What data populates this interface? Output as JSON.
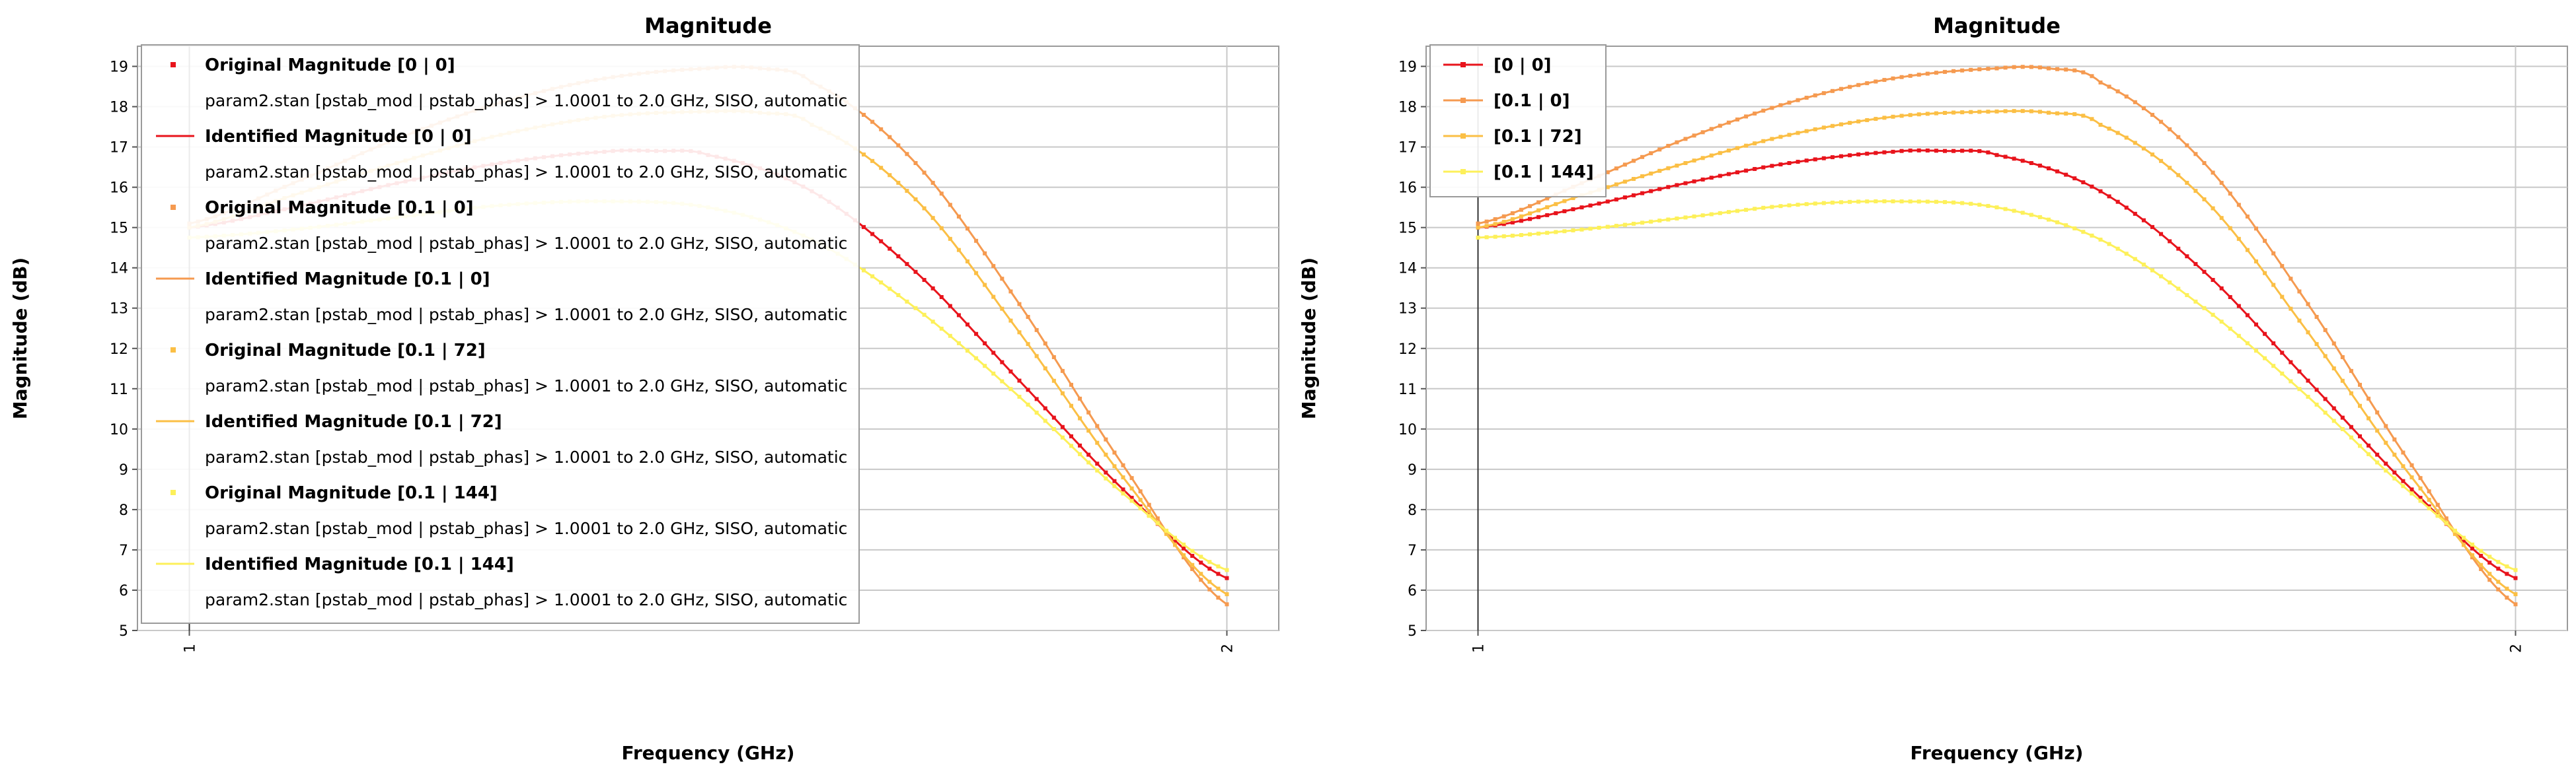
{
  "chart_data": [
    {
      "type": "line",
      "title": "Magnitude",
      "xlabel": "Frequency (GHz)",
      "ylabel": "Magnitude (dB)",
      "xlim": [
        0.95,
        2.05
      ],
      "ylim": [
        5,
        19.5
      ],
      "x_ticks": [
        "1",
        "2"
      ],
      "y_ticks": [
        "5",
        "6",
        "7",
        "8",
        "9",
        "10",
        "11",
        "12",
        "13",
        "14",
        "15",
        "16",
        "17",
        "18",
        "19"
      ],
      "grid": true,
      "legend": {
        "placement": "top-left",
        "entries": [
          {
            "label": "Original Magnitude [0 | 0]",
            "detail": "param2.stan [pstab_mod | pstab_phas] > 1.0001 to 2.0 GHz, SISO, automatic",
            "marker": "dot",
            "color": "#e8141c"
          },
          {
            "label": "Identified Magnitude [0 | 0]",
            "detail": "param2.stan [pstab_mod | pstab_phas] > 1.0001 to 2.0 GHz, SISO, automatic",
            "marker": "line",
            "color": "#e8141c"
          },
          {
            "label": "Original Magnitude [0.1 | 0]",
            "detail": "param2.stan [pstab_mod | pstab_phas] > 1.0001 to 2.0 GHz, SISO, automatic",
            "marker": "dot",
            "color": "#f59a50"
          },
          {
            "label": "Identified Magnitude [0.1 | 0]",
            "detail": "param2.stan [pstab_mod | pstab_phas] > 1.0001 to 2.0 GHz, SISO, automatic",
            "marker": "line",
            "color": "#f59a50"
          },
          {
            "label": "Original Magnitude [0.1 | 72]",
            "detail": "param2.stan [pstab_mod | pstab_phas] > 1.0001 to 2.0 GHz, SISO, automatic",
            "marker": "dot",
            "color": "#fbbf45"
          },
          {
            "label": "Identified Magnitude [0.1 | 72]",
            "detail": "param2.stan [pstab_mod | pstab_phas] > 1.0001 to 2.0 GHz, SISO, automatic",
            "marker": "line",
            "color": "#fbbf45"
          },
          {
            "label": "Original Magnitude [0.1 | 144]",
            "detail": "param2.stan [pstab_mod | pstab_phas] > 1.0001 to 2.0 GHz, SISO, automatic",
            "marker": "dot",
            "color": "#fdf05a"
          },
          {
            "label": "Identified Magnitude [0.1 | 144]",
            "detail": "param2.stan [pstab_mod | pstab_phas] > 1.0001 to 2.0 GHz, SISO, automatic",
            "marker": "line",
            "color": "#fdf05a"
          }
        ]
      },
      "series": [
        {
          "name": "[0 | 0]",
          "color": "#e8141c",
          "x": [
            1.0,
            1.1,
            1.2,
            1.3,
            1.4,
            1.45,
            1.5,
            1.6,
            1.7,
            1.8,
            1.9,
            2.0
          ],
          "y": [
            15.0,
            15.5,
            16.1,
            16.6,
            16.88,
            16.9,
            16.8,
            15.9,
            13.9,
            11.2,
            8.5,
            6.3
          ]
        },
        {
          "name": "[0.1 | 0]",
          "color": "#f59a50",
          "x": [
            1.0,
            1.1,
            1.2,
            1.3,
            1.4,
            1.5,
            1.55,
            1.6,
            1.7,
            1.8,
            1.9,
            2.0
          ],
          "y": [
            15.1,
            16.1,
            17.2,
            18.1,
            18.7,
            18.95,
            18.95,
            18.6,
            16.6,
            13.1,
            9.1,
            5.65
          ]
        },
        {
          "name": "[0.1 | 72]",
          "color": "#fbbf45",
          "x": [
            1.0,
            1.1,
            1.2,
            1.3,
            1.4,
            1.5,
            1.55,
            1.6,
            1.7,
            1.8,
            1.9,
            2.0
          ],
          "y": [
            15.0,
            15.8,
            16.6,
            17.3,
            17.75,
            17.88,
            17.85,
            17.55,
            15.7,
            12.4,
            8.8,
            5.9
          ]
        },
        {
          "name": "[0.1 | 144]",
          "color": "#fdf05a",
          "x": [
            1.0,
            1.1,
            1.2,
            1.3,
            1.4,
            1.5,
            1.6,
            1.7,
            1.8,
            1.9,
            2.0
          ],
          "y": [
            14.75,
            14.95,
            15.25,
            15.55,
            15.65,
            15.5,
            14.7,
            13.0,
            10.8,
            8.4,
            6.5
          ]
        }
      ]
    },
    {
      "type": "line",
      "title": "Magnitude",
      "xlabel": "Frequency (GHz)",
      "ylabel": "Magnitude (dB)",
      "xlim": [
        0.95,
        2.05
      ],
      "ylim": [
        5,
        19.5
      ],
      "x_ticks": [
        "1",
        "2"
      ],
      "y_ticks": [
        "5",
        "6",
        "7",
        "8",
        "9",
        "10",
        "11",
        "12",
        "13",
        "14",
        "15",
        "16",
        "17",
        "18",
        "19"
      ],
      "grid": true,
      "legend": {
        "placement": "top-left",
        "entries": [
          {
            "label": "[0 | 0]",
            "marker": "line-dot",
            "color": "#e8141c"
          },
          {
            "label": "[0.1 | 0]",
            "marker": "line-dot",
            "color": "#f59a50"
          },
          {
            "label": "[0.1 | 72]",
            "marker": "line-dot",
            "color": "#fbbf45"
          },
          {
            "label": "[0.1 | 144]",
            "marker": "line-dot",
            "color": "#fdf05a"
          }
        ]
      },
      "series": [
        {
          "name": "[0 | 0]",
          "color": "#e8141c",
          "x": [
            1.0,
            1.1,
            1.2,
            1.3,
            1.4,
            1.45,
            1.5,
            1.6,
            1.7,
            1.8,
            1.9,
            2.0
          ],
          "y": [
            15.0,
            15.5,
            16.1,
            16.6,
            16.88,
            16.9,
            16.8,
            15.9,
            13.9,
            11.2,
            8.5,
            6.3
          ]
        },
        {
          "name": "[0.1 | 0]",
          "color": "#f59a50",
          "x": [
            1.0,
            1.1,
            1.2,
            1.3,
            1.4,
            1.5,
            1.55,
            1.6,
            1.7,
            1.8,
            1.9,
            2.0
          ],
          "y": [
            15.1,
            16.1,
            17.2,
            18.1,
            18.7,
            18.95,
            18.95,
            18.6,
            16.6,
            13.1,
            9.1,
            5.65
          ]
        },
        {
          "name": "[0.1 | 72]",
          "color": "#fbbf45",
          "x": [
            1.0,
            1.1,
            1.2,
            1.3,
            1.4,
            1.5,
            1.55,
            1.6,
            1.7,
            1.8,
            1.9,
            2.0
          ],
          "y": [
            15.0,
            15.8,
            16.6,
            17.3,
            17.75,
            17.88,
            17.85,
            17.55,
            15.7,
            12.4,
            8.8,
            5.9
          ]
        },
        {
          "name": "[0.1 | 144]",
          "color": "#fdf05a",
          "x": [
            1.0,
            1.1,
            1.2,
            1.3,
            1.4,
            1.5,
            1.6,
            1.7,
            1.8,
            1.9,
            2.0
          ],
          "y": [
            14.75,
            14.95,
            15.25,
            15.55,
            15.65,
            15.5,
            14.7,
            13.0,
            10.8,
            8.4,
            6.5
          ]
        }
      ]
    }
  ]
}
